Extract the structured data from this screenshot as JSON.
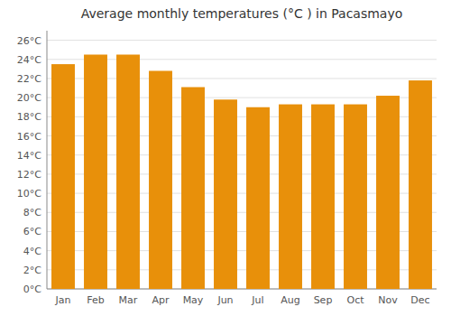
{
  "chart_data": {
    "type": "bar",
    "title": "Average monthly temperatures (°C ) in Pacasmayo",
    "categories": [
      "Jan",
      "Feb",
      "Mar",
      "Apr",
      "May",
      "Jun",
      "Jul",
      "Aug",
      "Sep",
      "Oct",
      "Nov",
      "Dec"
    ],
    "values": [
      23.5,
      24.5,
      24.5,
      22.8,
      21.1,
      19.8,
      19.0,
      19.3,
      19.3,
      19.3,
      20.2,
      21.8
    ],
    "color": "#E8900A",
    "ylim": [
      0,
      27
    ],
    "yticks": [
      {
        "value": 0,
        "label": "0°C"
      },
      {
        "value": 2,
        "label": "2°C"
      },
      {
        "value": 4,
        "label": "4°C"
      },
      {
        "value": 6,
        "label": "6°C"
      },
      {
        "value": 8,
        "label": "8°C"
      },
      {
        "value": 10,
        "label": "10°C"
      },
      {
        "value": 12,
        "label": "12°C"
      },
      {
        "value": 14,
        "label": "14°C"
      },
      {
        "value": 16,
        "label": "16°C"
      },
      {
        "value": 18,
        "label": "18°C"
      },
      {
        "value": 20,
        "label": "20°C"
      },
      {
        "value": 22,
        "label": "22°C"
      },
      {
        "value": 24,
        "label": "24°C"
      },
      {
        "value": 26,
        "label": "26°C"
      }
    ],
    "grid": true
  }
}
